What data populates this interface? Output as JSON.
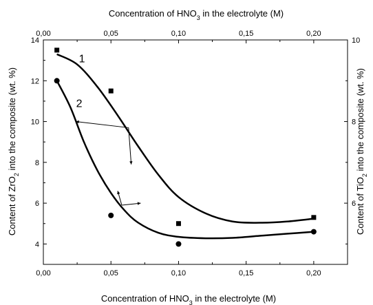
{
  "chart_data": {
    "type": "scatter",
    "x_axis_bottom": {
      "label_parts": [
        "Concentration of HNO",
        "3",
        " in the electrolyte (M)"
      ],
      "ticks": [
        0.0,
        0.05,
        0.1,
        0.15,
        0.2
      ],
      "tick_labels": [
        "0,00",
        "0,05",
        "0,10",
        "0,15",
        "0,20"
      ],
      "range": [
        0.0,
        0.225
      ]
    },
    "x_axis_top": {
      "label_parts": [
        "Concentration of HNO",
        "3",
        " in the electrolyte (M)"
      ],
      "ticks": [
        0.0,
        0.05,
        0.1,
        0.15,
        0.2
      ],
      "tick_labels": [
        "0,00",
        "0,05",
        "0,10",
        "0,15",
        "0,20"
      ],
      "range": [
        0.0,
        0.225
      ]
    },
    "y_axis_left": {
      "label_parts": [
        "Content of ZrO",
        "2",
        " into the composite (wt. %)"
      ],
      "ticks": [
        4,
        6,
        8,
        10,
        12,
        14
      ],
      "tick_labels": [
        "4",
        "6",
        "8",
        "10",
        "12",
        "14"
      ],
      "range": [
        3.0,
        14.0
      ]
    },
    "y_axis_right": {
      "label_parts": [
        "Content of TiO",
        "2",
        " into the composite (wt. %)"
      ],
      "ticks": [
        6,
        8,
        10
      ],
      "tick_labels": [
        "6",
        "8",
        "10"
      ],
      "range": [
        4.5,
        10.0
      ]
    },
    "series": [
      {
        "label": "1",
        "axis": "right",
        "marker": "square",
        "points": [
          {
            "x": 0.01,
            "y": 9.75
          },
          {
            "x": 0.05,
            "y": 8.75
          },
          {
            "x": 0.1,
            "y": 5.5
          },
          {
            "x": 0.2,
            "y": 5.65
          }
        ],
        "fit": [
          {
            "x": 0.01,
            "y": 9.65
          },
          {
            "x": 0.025,
            "y": 9.4
          },
          {
            "x": 0.04,
            "y": 8.85
          },
          {
            "x": 0.055,
            "y": 8.15
          },
          {
            "x": 0.07,
            "y": 7.4
          },
          {
            "x": 0.085,
            "y": 6.7
          },
          {
            "x": 0.1,
            "y": 6.15
          },
          {
            "x": 0.12,
            "y": 5.75
          },
          {
            "x": 0.14,
            "y": 5.55
          },
          {
            "x": 0.16,
            "y": 5.52
          },
          {
            "x": 0.18,
            "y": 5.55
          },
          {
            "x": 0.2,
            "y": 5.62
          }
        ]
      },
      {
        "label": "2",
        "axis": "left",
        "marker": "circle",
        "points": [
          {
            "x": 0.01,
            "y": 12.0
          },
          {
            "x": 0.05,
            "y": 5.4
          },
          {
            "x": 0.1,
            "y": 4.0
          },
          {
            "x": 0.2,
            "y": 4.6
          }
        ],
        "fit": [
          {
            "x": 0.01,
            "y": 12.0
          },
          {
            "x": 0.02,
            "y": 10.7
          },
          {
            "x": 0.03,
            "y": 9.0
          },
          {
            "x": 0.04,
            "y": 7.6
          },
          {
            "x": 0.05,
            "y": 6.5
          },
          {
            "x": 0.06,
            "y": 5.65
          },
          {
            "x": 0.07,
            "y": 5.05
          },
          {
            "x": 0.085,
            "y": 4.55
          },
          {
            "x": 0.1,
            "y": 4.35
          },
          {
            "x": 0.12,
            "y": 4.28
          },
          {
            "x": 0.14,
            "y": 4.3
          },
          {
            "x": 0.16,
            "y": 4.4
          },
          {
            "x": 0.18,
            "y": 4.5
          },
          {
            "x": 0.2,
            "y": 4.6
          }
        ]
      }
    ],
    "annotations": {
      "arrow_left_axis": {
        "from": {
          "x": 0.063,
          "y": 9.7
        },
        "to": {
          "x": 0.024,
          "y": 10.0
        }
      },
      "arrow_left_down": {
        "from": {
          "x": 0.063,
          "y": 9.7
        },
        "to": {
          "x": 0.065,
          "y": 7.9
        }
      },
      "arrow_right_axis": {
        "from": {
          "x": 0.058,
          "y": 5.9
        },
        "to": {
          "x": 0.072,
          "y": 6.0
        }
      },
      "arrow_up": {
        "from": {
          "x": 0.058,
          "y": 5.9
        },
        "to": {
          "x": 0.055,
          "y": 6.6
        }
      }
    },
    "grid": false,
    "legend": "none"
  }
}
